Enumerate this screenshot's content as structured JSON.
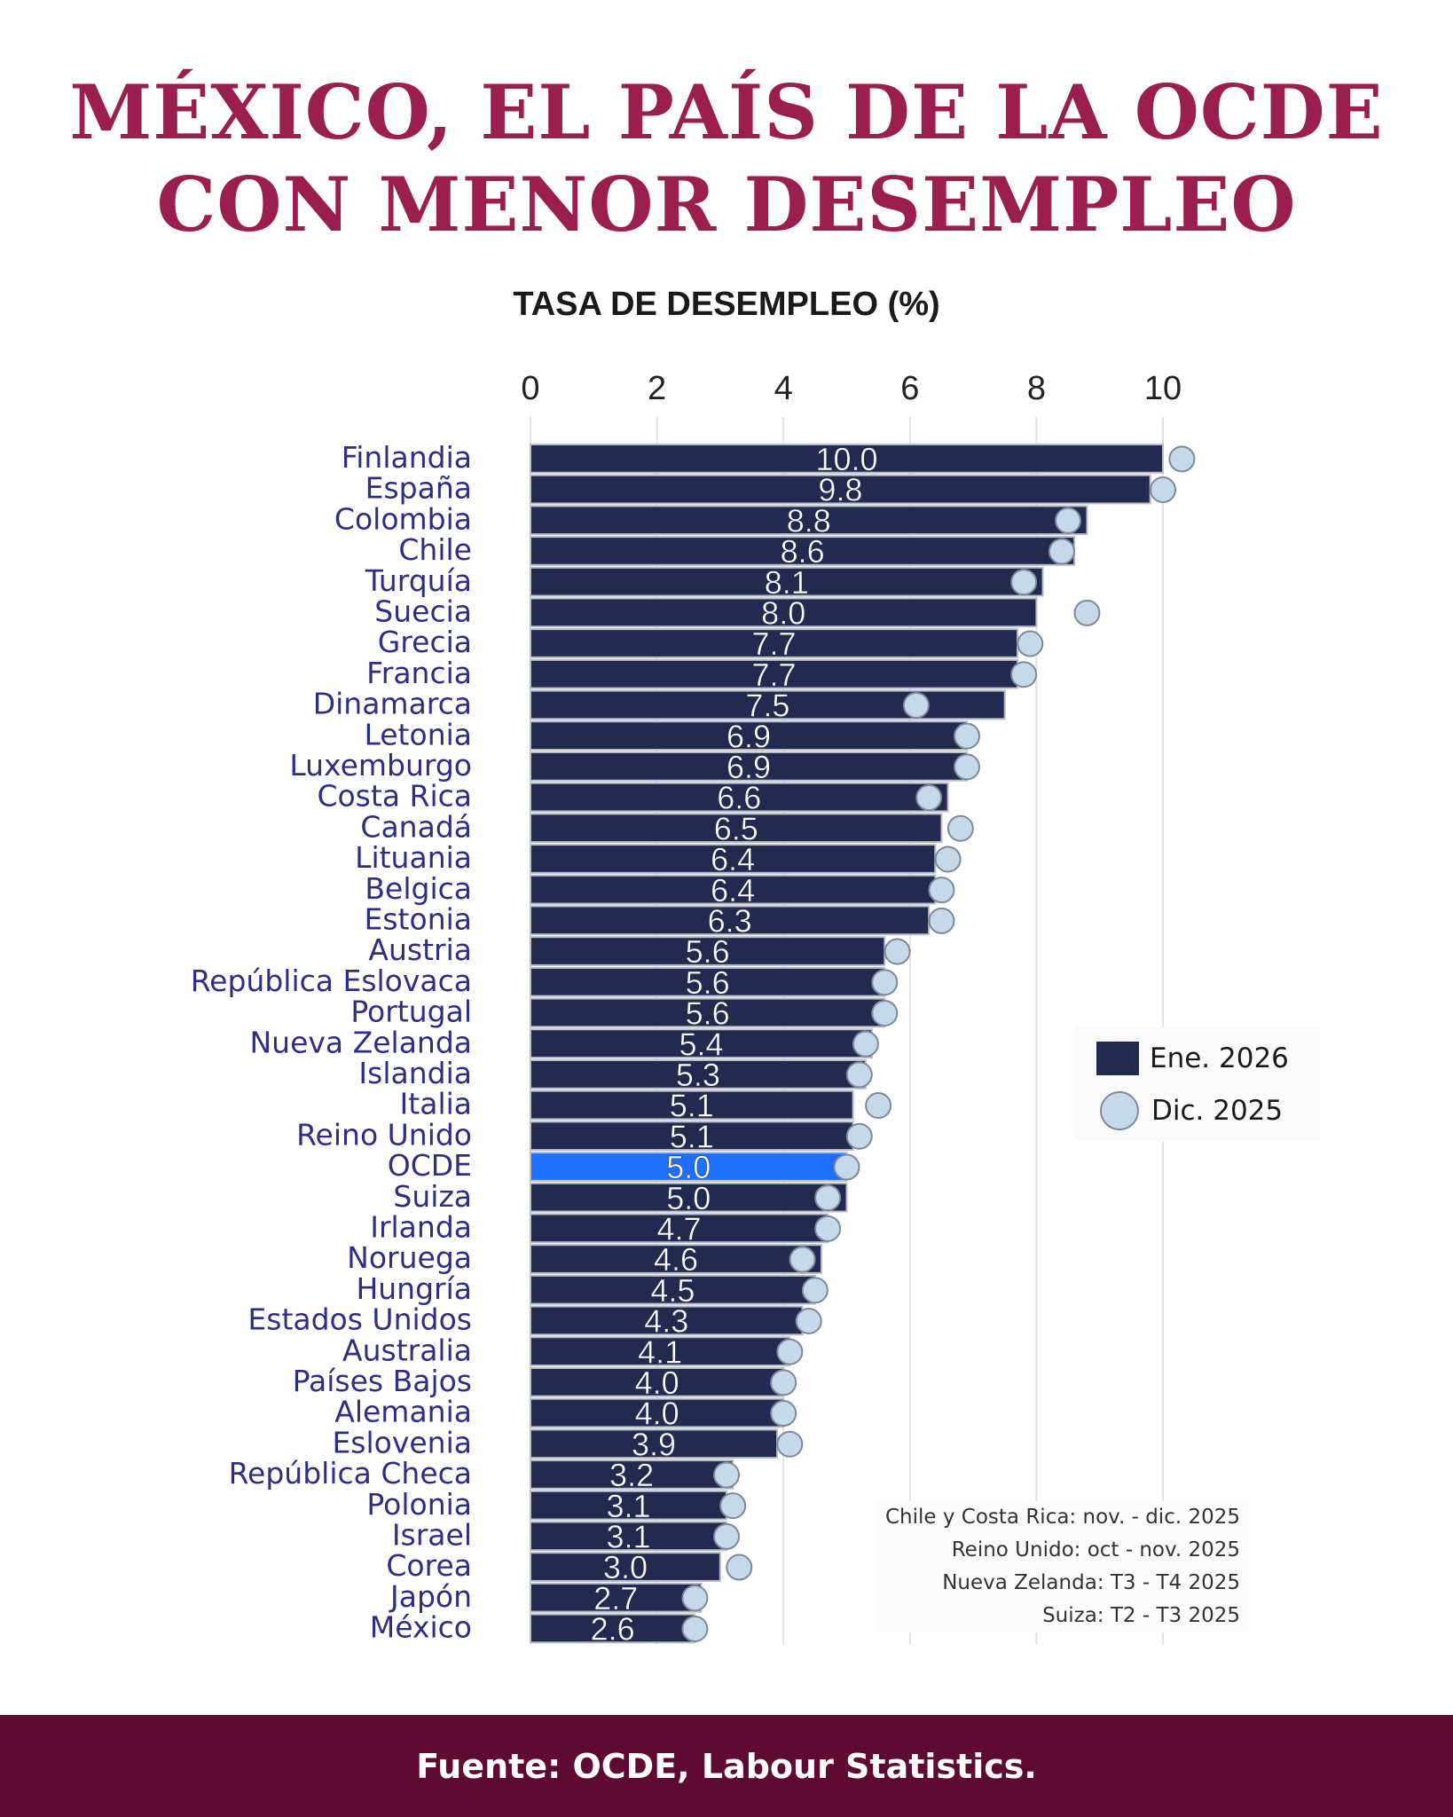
{
  "title_line1": "MÉXICO, EL PAÍS DE LA OCDE",
  "title_line2": "CON MENOR DESEMPLEO",
  "footer": "Fuente: OCDE, Labour Statistics.",
  "notes": [
    "Chile y Costa Rica: nov. - dic. 2025",
    "Reino Unido: oct - nov. 2025",
    "Nueva Zelanda: T3 - T4 2025",
    "Suiza: T2 - T3 2025"
  ],
  "colors": {
    "title": "#9b1f4e",
    "bar": "#222a50",
    "highlight": "#1f6fff",
    "dot": "#c5d9ea",
    "footer": "#5e0a33",
    "label": "#2d2f86"
  },
  "chart_data": {
    "type": "bar",
    "orientation": "horizontal",
    "title": "TASA DE DESEMPLEO (%)",
    "xlim": [
      0,
      10.5
    ],
    "xticks": [
      0,
      2,
      4,
      6,
      8,
      10
    ],
    "grid": true,
    "legend_position": "right",
    "highlight": "OCDE",
    "categories": [
      "Finlandia",
      "España",
      "Colombia",
      "Chile",
      "Turquía",
      "Suecia",
      "Grecia",
      "Francia",
      "Dinamarca",
      "Letonia",
      "Luxemburgo",
      "Costa Rica",
      "Canadá",
      "Lituania",
      "Belgica",
      "Estonia",
      "Austria",
      "República Eslovaca",
      "Portugal",
      "Nueva Zelanda",
      "Islandia",
      "Italia",
      "Reino Unido",
      "OCDE",
      "Suiza",
      "Irlanda",
      "Noruega",
      "Hungría",
      "Estados Unidos",
      "Australia",
      "Países Bajos",
      "Alemania",
      "Eslovenia",
      "República  Checa",
      "Polonia",
      "Israel",
      "Corea",
      "Japón",
      "México"
    ],
    "series": [
      {
        "name": "Ene. 2026",
        "type": "bar",
        "values": [
          10.0,
          9.8,
          8.8,
          8.6,
          8.1,
          8.0,
          7.7,
          7.7,
          7.5,
          6.9,
          6.9,
          6.6,
          6.5,
          6.4,
          6.4,
          6.3,
          5.6,
          5.6,
          5.6,
          5.4,
          5.3,
          5.1,
          5.1,
          5.0,
          5.0,
          4.7,
          4.6,
          4.5,
          4.3,
          4.1,
          4.0,
          4.0,
          3.9,
          3.2,
          3.1,
          3.1,
          3.0,
          2.7,
          2.6
        ]
      },
      {
        "name": "Dic. 2025",
        "type": "dot",
        "values": [
          10.3,
          10.0,
          8.5,
          8.4,
          7.8,
          8.8,
          7.9,
          7.8,
          6.1,
          6.9,
          6.9,
          6.3,
          6.8,
          6.6,
          6.5,
          6.5,
          5.8,
          5.6,
          5.6,
          5.3,
          5.2,
          5.5,
          5.2,
          5.0,
          4.7,
          4.7,
          4.3,
          4.5,
          4.4,
          4.1,
          4.0,
          4.0,
          4.1,
          3.1,
          3.2,
          3.1,
          3.3,
          2.6,
          2.6
        ]
      }
    ]
  }
}
